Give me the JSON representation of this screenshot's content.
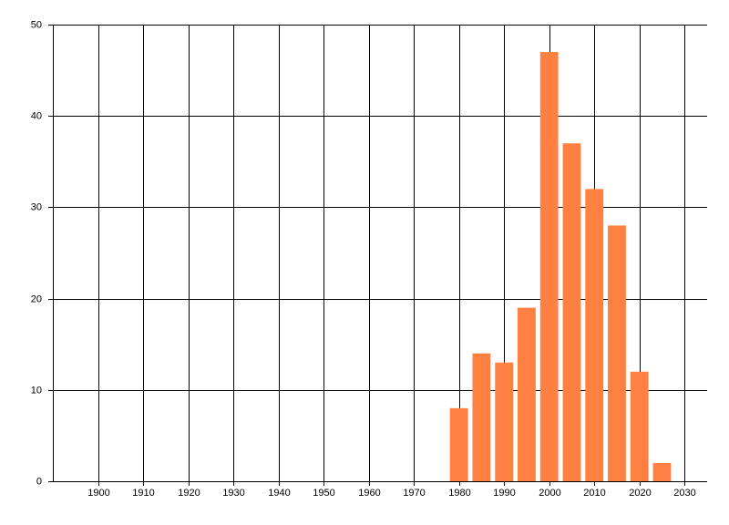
{
  "chart_data": {
    "type": "bar",
    "x": [
      1980,
      1985,
      1990,
      1995,
      2000,
      2005,
      2010,
      2015,
      2020,
      2025
    ],
    "values": [
      8,
      14,
      13,
      19,
      47,
      37,
      32,
      28,
      12,
      2
    ],
    "color": "#ff8040",
    "xlim": [
      1890,
      2035
    ],
    "xticks": [
      1900,
      1910,
      1920,
      1930,
      1940,
      1950,
      1960,
      1970,
      1980,
      1990,
      2000,
      2010,
      2020,
      2030
    ],
    "ylim": [
      0,
      50
    ],
    "yticks": [
      0,
      10,
      20,
      30,
      40,
      50
    ],
    "grid": true
  }
}
